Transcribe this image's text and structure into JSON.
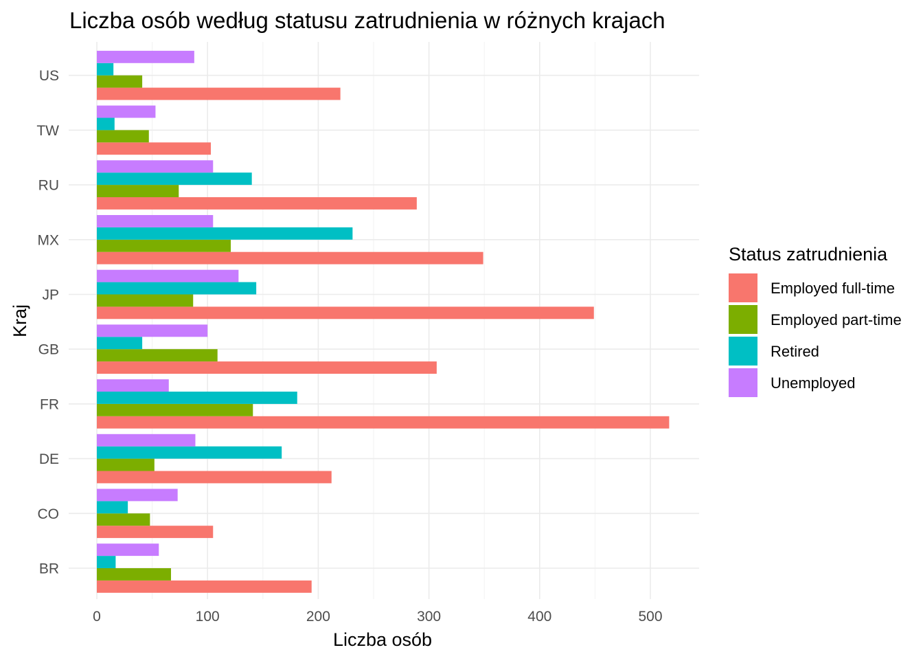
{
  "chart_data": {
    "type": "bar",
    "orientation": "horizontal",
    "title": "Liczba osób według statusu zatrudnienia w różnych krajach",
    "xlabel": "Liczba osób",
    "ylabel": "Kraj",
    "xlim": [
      0,
      540
    ],
    "x_ticks": [
      0,
      100,
      200,
      300,
      400,
      500
    ],
    "x_tick_labels": [
      "0",
      "100",
      "200",
      "300",
      "400",
      "500"
    ],
    "categories": [
      "BR",
      "CO",
      "DE",
      "FR",
      "GB",
      "JP",
      "MX",
      "RU",
      "TW",
      "US"
    ],
    "legend": {
      "title": "Status zatrudnienia",
      "placement": "right"
    },
    "grid": true,
    "series": [
      {
        "name": "Employed full-time",
        "color": "#F8766D",
        "values": [
          194,
          105,
          212,
          517,
          307,
          449,
          349,
          289,
          103,
          220
        ]
      },
      {
        "name": "Employed part-time",
        "color": "#7CAE00",
        "values": [
          67,
          48,
          52,
          141,
          109,
          87,
          121,
          74,
          47,
          41
        ]
      },
      {
        "name": "Retired",
        "color": "#00BFC4",
        "values": [
          17,
          28,
          167,
          181,
          41,
          144,
          231,
          140,
          16,
          15
        ]
      },
      {
        "name": "Unemployed",
        "color": "#C77CFF",
        "values": [
          56,
          73,
          89,
          65,
          100,
          128,
          105,
          105,
          53,
          88
        ]
      }
    ]
  }
}
